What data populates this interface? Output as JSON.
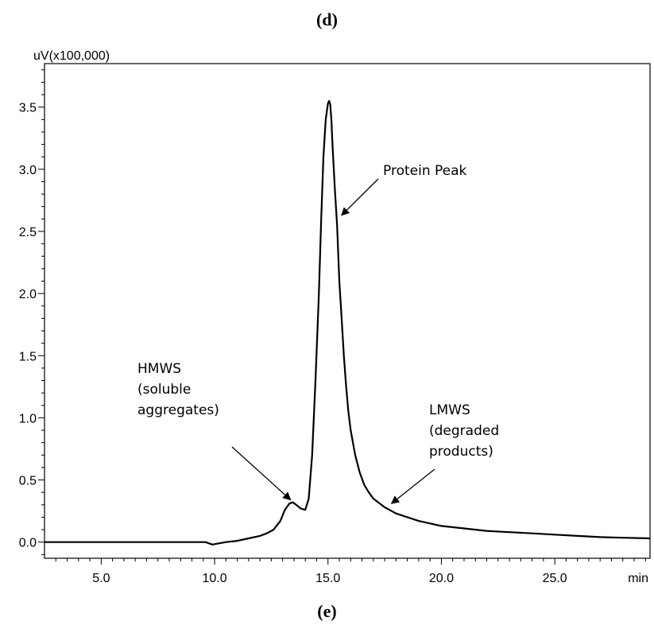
{
  "captions": {
    "top": "(d)",
    "bottom": "(e)"
  },
  "chart_data": {
    "type": "line",
    "ylabel": "uV(x100,000)",
    "xlabel": "min",
    "xlim": [
      2.5,
      29.2
    ],
    "ylim": [
      -0.13,
      3.85
    ],
    "x_ticks": [
      "5.0",
      "10.0",
      "15.0",
      "20.0",
      "25.0"
    ],
    "x_tick_values": [
      5,
      10,
      15,
      20,
      25
    ],
    "y_ticks": [
      "0.0",
      "0.5",
      "1.0",
      "1.5",
      "2.0",
      "2.5",
      "3.0",
      "3.5"
    ],
    "y_tick_values": [
      0,
      0.5,
      1.0,
      1.5,
      2.0,
      2.5,
      3.0,
      3.5
    ],
    "grid": false,
    "series": [
      {
        "color": "#000000",
        "x": [
          2.5,
          5.0,
          9.6,
          9.9,
          10.2,
          10.5,
          11.0,
          11.5,
          12.0,
          12.3,
          12.6,
          12.9,
          13.1,
          13.3,
          13.45,
          13.6,
          13.8,
          14.0,
          14.15,
          14.3,
          14.45,
          14.6,
          14.7,
          14.8,
          14.9,
          15.0,
          15.05,
          15.1,
          15.15,
          15.2,
          15.3,
          15.4,
          15.5,
          15.6,
          15.7,
          15.8,
          15.9,
          16.0,
          16.2,
          16.4,
          16.6,
          16.8,
          17.0,
          17.5,
          18.0,
          19.0,
          20.0,
          21.0,
          22.0,
          23.0,
          24.0,
          25.0,
          26.0,
          27.0,
          28.0,
          29.2
        ],
        "y": [
          0.0,
          0.0,
          0.0,
          -0.02,
          -0.01,
          0.0,
          0.01,
          0.03,
          0.05,
          0.07,
          0.1,
          0.17,
          0.26,
          0.31,
          0.32,
          0.3,
          0.27,
          0.26,
          0.35,
          0.7,
          1.3,
          2.0,
          2.6,
          3.1,
          3.4,
          3.53,
          3.55,
          3.52,
          3.4,
          3.2,
          2.85,
          2.55,
          2.1,
          1.8,
          1.5,
          1.25,
          1.05,
          0.9,
          0.7,
          0.56,
          0.46,
          0.4,
          0.35,
          0.28,
          0.23,
          0.17,
          0.13,
          0.11,
          0.09,
          0.08,
          0.07,
          0.06,
          0.05,
          0.04,
          0.035,
          0.03
        ]
      }
    ],
    "annotations": [
      {
        "lines": [
          "Protein Peak"
        ],
        "point": [
          15.6,
          2.63
        ]
      },
      {
        "lines": [
          "HMWS",
          "(soluble",
          "aggregates)"
        ],
        "point": [
          13.35,
          0.34
        ]
      },
      {
        "lines": [
          "LMWS",
          "(degraded",
          "products)"
        ],
        "point": [
          17.8,
          0.31
        ]
      }
    ]
  }
}
